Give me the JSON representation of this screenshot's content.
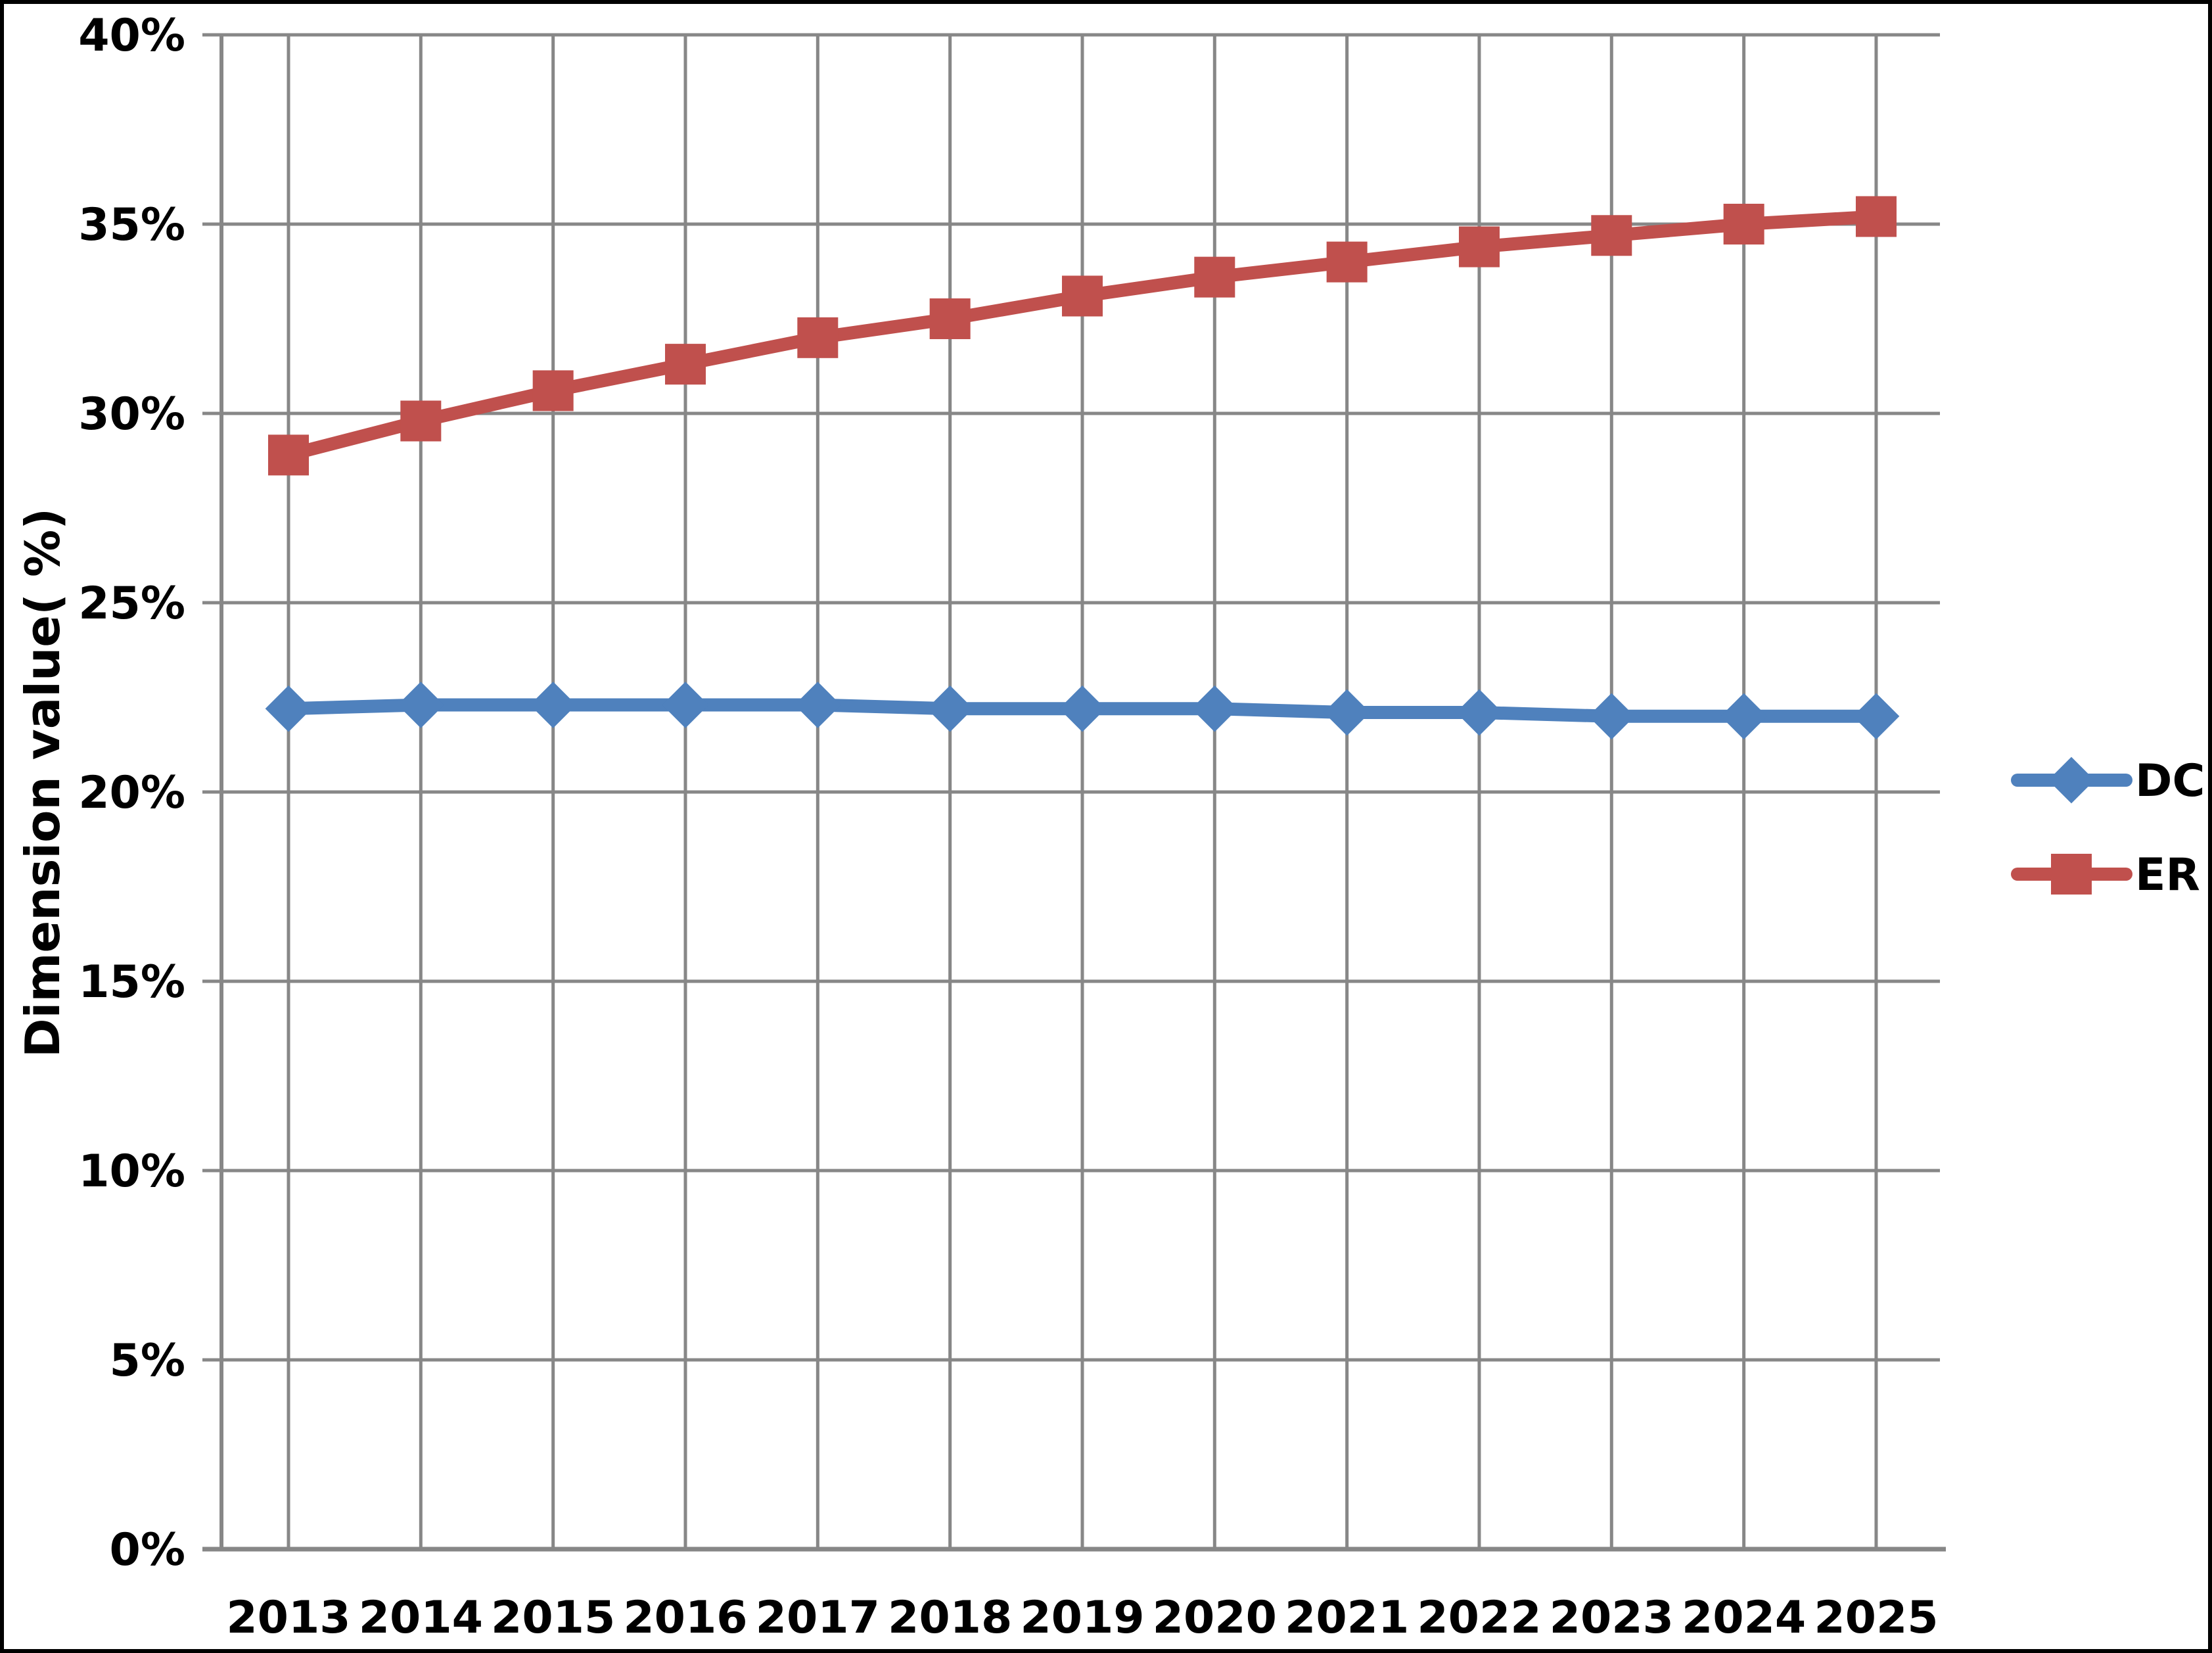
{
  "chart_data": {
    "type": "line",
    "title": "",
    "xlabel": "",
    "ylabel": "Dimension value( %)",
    "categories": [
      "2013",
      "2014",
      "2015",
      "2016",
      "2017",
      "2018",
      "2019",
      "2020",
      "2021",
      "2022",
      "2023",
      "2024",
      "2025"
    ],
    "y_ticks": [
      "0%",
      "5%",
      "10%",
      "15%",
      "20%",
      "25%",
      "30%",
      "35%",
      "40%"
    ],
    "ylim": [
      0,
      40
    ],
    "y_tick_step": 5,
    "grid": true,
    "legend_position": "right",
    "series": [
      {
        "name": "DC",
        "color": "#4F81BD",
        "marker": "diamond",
        "values": [
          22.2,
          22.3,
          22.3,
          22.3,
          22.3,
          22.2,
          22.2,
          22.2,
          22.1,
          22.1,
          22.0,
          22.0,
          22.0
        ]
      },
      {
        "name": "ER",
        "color": "#C0504D",
        "marker": "square",
        "values": [
          28.9,
          29.8,
          30.6,
          31.3,
          32.0,
          32.5,
          33.1,
          33.6,
          34.0,
          34.4,
          34.7,
          35.0,
          35.2
        ]
      }
    ],
    "colors": {
      "gridline": "#878787",
      "axis": "#878787",
      "text": "#000000",
      "background": "#FFFFFF",
      "border": "#000000"
    }
  }
}
